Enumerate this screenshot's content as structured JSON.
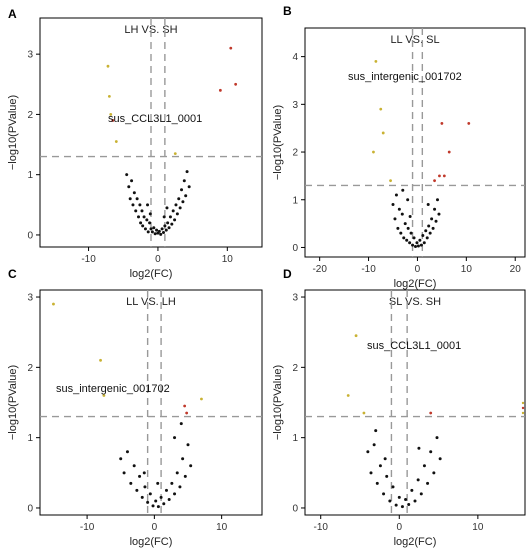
{
  "chart_data": [
    {
      "type": "scatter",
      "panel_label": "A",
      "title": "LH VS. SH",
      "xlabel": "log2(FC)",
      "ylabel": "−log10(PValue)",
      "xlim": [
        -17,
        15
      ],
      "ylim": [
        -0.2,
        3.6
      ],
      "xticks": [
        -10,
        0,
        10
      ],
      "yticks": [
        0,
        1,
        2,
        3
      ],
      "threshold_y": 1.3,
      "threshold_x": [
        -1,
        1
      ],
      "annotation": {
        "text": "sus_CCL3L1_0001"
      },
      "points": {
        "black": [
          [
            -4.5,
            1.0
          ],
          [
            -4.2,
            0.8
          ],
          [
            -4.0,
            0.6
          ],
          [
            -3.8,
            0.9
          ],
          [
            -3.6,
            0.5
          ],
          [
            -3.4,
            0.7
          ],
          [
            -3.2,
            0.4
          ],
          [
            -3.0,
            0.6
          ],
          [
            -2.8,
            0.3
          ],
          [
            -2.6,
            0.5
          ],
          [
            -2.5,
            0.2
          ],
          [
            -2.3,
            0.4
          ],
          [
            -2.2,
            0.15
          ],
          [
            -2.0,
            0.3
          ],
          [
            -1.8,
            0.1
          ],
          [
            -1.6,
            0.25
          ],
          [
            -1.4,
            0.05
          ],
          [
            -1.2,
            0.2
          ],
          [
            -1.0,
            0.1
          ],
          [
            -0.8,
            0.05
          ],
          [
            -0.6,
            0.12
          ],
          [
            -0.4,
            0.02
          ],
          [
            -0.2,
            0.08
          ],
          [
            0.0,
            0.03
          ],
          [
            0.2,
            0.06
          ],
          [
            0.4,
            0.01
          ],
          [
            0.6,
            0.1
          ],
          [
            0.8,
            0.04
          ],
          [
            1.0,
            0.15
          ],
          [
            1.2,
            0.08
          ],
          [
            1.4,
            0.2
          ],
          [
            1.6,
            0.12
          ],
          [
            1.8,
            0.3
          ],
          [
            2.0,
            0.18
          ],
          [
            2.2,
            0.4
          ],
          [
            2.4,
            0.25
          ],
          [
            2.6,
            0.5
          ],
          [
            2.8,
            0.35
          ],
          [
            3.0,
            0.6
          ],
          [
            3.2,
            0.45
          ],
          [
            3.4,
            0.75
          ],
          [
            3.6,
            0.55
          ],
          [
            3.8,
            0.9
          ],
          [
            4.0,
            0.65
          ],
          [
            4.2,
            1.05
          ],
          [
            4.5,
            0.8
          ],
          [
            -1.5,
            0.5
          ],
          [
            -1.1,
            0.35
          ],
          [
            1.3,
            0.45
          ],
          [
            0.9,
            0.3
          ]
        ],
        "yellow": [
          [
            -7.2,
            2.8
          ],
          [
            -7.0,
            2.3
          ],
          [
            -6.8,
            2.0
          ],
          [
            -6.0,
            1.55
          ],
          [
            2.5,
            1.35
          ]
        ],
        "red": [
          [
            9,
            2.4
          ],
          [
            10.5,
            3.1
          ],
          [
            11.2,
            2.5
          ],
          [
            -6.5,
            1.9
          ]
        ]
      }
    },
    {
      "type": "scatter",
      "panel_label": "B",
      "title": "LL VS. SL",
      "xlabel": "log2(FC)",
      "ylabel": "−log10(PValue)",
      "xlim": [
        -23,
        22
      ],
      "ylim": [
        -0.2,
        4.6
      ],
      "xticks": [
        -20,
        -10,
        0,
        10,
        20
      ],
      "yticks": [
        0,
        1,
        2,
        3,
        4
      ],
      "threshold_y": 1.3,
      "threshold_x": [
        -1,
        1
      ],
      "annotation": {
        "text": "sus_intergenic_001702"
      },
      "points": {
        "black": [
          [
            -5.0,
            0.9
          ],
          [
            -4.6,
            0.6
          ],
          [
            -4.3,
            1.1
          ],
          [
            -4.0,
            0.4
          ],
          [
            -3.7,
            0.8
          ],
          [
            -3.4,
            0.3
          ],
          [
            -3.1,
            0.7
          ],
          [
            -2.8,
            0.2
          ],
          [
            -2.5,
            0.5
          ],
          [
            -2.2,
            0.15
          ],
          [
            -1.9,
            0.4
          ],
          [
            -1.6,
            0.1
          ],
          [
            -1.3,
            0.3
          ],
          [
            -1.0,
            0.05
          ],
          [
            -0.7,
            0.2
          ],
          [
            -0.4,
            0.02
          ],
          [
            -0.1,
            0.1
          ],
          [
            0.2,
            0.03
          ],
          [
            0.5,
            0.15
          ],
          [
            0.8,
            0.05
          ],
          [
            1.1,
            0.25
          ],
          [
            1.4,
            0.1
          ],
          [
            1.7,
            0.35
          ],
          [
            2.0,
            0.2
          ],
          [
            2.3,
            0.45
          ],
          [
            2.6,
            0.3
          ],
          [
            2.9,
            0.6
          ],
          [
            3.2,
            0.4
          ],
          [
            3.5,
            0.8
          ],
          [
            3.8,
            0.55
          ],
          [
            4.1,
            1.0
          ],
          [
            4.4,
            0.7
          ],
          [
            -2.0,
            1.0
          ],
          [
            -3.0,
            1.2
          ],
          [
            2.2,
            0.9
          ],
          [
            -1.5,
            0.65
          ]
        ],
        "yellow": [
          [
            -8.5,
            3.9
          ],
          [
            -7.5,
            2.9
          ],
          [
            -7.0,
            2.4
          ],
          [
            -9.0,
            2.0
          ],
          [
            -5.5,
            1.4
          ]
        ],
        "red": [
          [
            5.0,
            2.6
          ],
          [
            6.5,
            2.0
          ],
          [
            10.5,
            2.6
          ],
          [
            3.5,
            1.4
          ],
          [
            4.5,
            1.5
          ],
          [
            5.5,
            1.5
          ]
        ]
      }
    },
    {
      "type": "scatter",
      "panel_label": "C",
      "title": "LL VS. LH",
      "xlabel": "log2(FC)",
      "ylabel": "−log10(PValue)",
      "xlim": [
        -17,
        16
      ],
      "ylim": [
        -0.1,
        3.1
      ],
      "xticks": [
        -10,
        0,
        10
      ],
      "yticks": [
        0,
        1,
        2,
        3
      ],
      "threshold_y": 1.3,
      "threshold_x": [
        -1,
        1
      ],
      "annotation": {
        "text": "sus_intergenic_001702"
      },
      "points": {
        "black": [
          [
            -5.0,
            0.7
          ],
          [
            -4.5,
            0.5
          ],
          [
            -4.0,
            0.8
          ],
          [
            -3.5,
            0.35
          ],
          [
            -3.0,
            0.6
          ],
          [
            -2.6,
            0.25
          ],
          [
            -2.2,
            0.45
          ],
          [
            -1.8,
            0.15
          ],
          [
            -1.4,
            0.3
          ],
          [
            -1.0,
            0.08
          ],
          [
            -0.6,
            0.2
          ],
          [
            -0.2,
            0.03
          ],
          [
            0.2,
            0.1
          ],
          [
            0.6,
            0.02
          ],
          [
            1.0,
            0.15
          ],
          [
            1.4,
            0.06
          ],
          [
            1.8,
            0.25
          ],
          [
            2.2,
            0.12
          ],
          [
            2.6,
            0.35
          ],
          [
            3.0,
            0.2
          ],
          [
            3.4,
            0.5
          ],
          [
            3.8,
            0.3
          ],
          [
            4.2,
            0.7
          ],
          [
            4.6,
            0.45
          ],
          [
            5.0,
            0.9
          ],
          [
            5.4,
            0.6
          ],
          [
            3.0,
            1.0
          ],
          [
            4.0,
            1.2
          ],
          [
            -1.5,
            0.5
          ],
          [
            0.5,
            0.35
          ]
        ],
        "yellow": [
          [
            -15.0,
            2.9
          ],
          [
            -8.0,
            2.1
          ],
          [
            -7.5,
            1.6
          ],
          [
            7.0,
            1.55
          ]
        ],
        "red": [
          [
            4.5,
            1.45
          ],
          [
            4.8,
            1.35
          ]
        ]
      }
    },
    {
      "type": "scatter",
      "panel_label": "D",
      "title": "SL VS. SH",
      "xlabel": "log2(FC)",
      "ylabel": "−log10(PValue)",
      "xlim": [
        -12,
        16
      ],
      "ylim": [
        -0.1,
        3.1
      ],
      "xticks": [
        -10,
        0,
        10
      ],
      "yticks": [
        0,
        1,
        2,
        3
      ],
      "threshold_y": 1.3,
      "threshold_x": [
        -1,
        1
      ],
      "annotation": {
        "text": "sus_CCL3L1_0001"
      },
      "points": {
        "black": [
          [
            -4.0,
            0.8
          ],
          [
            -3.6,
            0.5
          ],
          [
            -3.2,
            0.9
          ],
          [
            -2.8,
            0.35
          ],
          [
            -2.4,
            0.6
          ],
          [
            -2.0,
            0.2
          ],
          [
            -1.6,
            0.45
          ],
          [
            -1.2,
            0.1
          ],
          [
            -0.8,
            0.3
          ],
          [
            -0.4,
            0.04
          ],
          [
            0.0,
            0.15
          ],
          [
            0.4,
            0.02
          ],
          [
            0.8,
            0.12
          ],
          [
            1.2,
            0.05
          ],
          [
            1.6,
            0.25
          ],
          [
            2.0,
            0.1
          ],
          [
            2.4,
            0.4
          ],
          [
            2.8,
            0.2
          ],
          [
            3.2,
            0.6
          ],
          [
            3.6,
            0.35
          ],
          [
            4.0,
            0.8
          ],
          [
            4.4,
            0.5
          ],
          [
            4.8,
            1.0
          ],
          [
            5.2,
            0.7
          ],
          [
            -3.0,
            1.1
          ],
          [
            2.5,
            0.85
          ],
          [
            -1.8,
            0.7
          ]
        ],
        "yellow": [
          [
            -5.5,
            2.45
          ],
          [
            -6.5,
            1.6
          ],
          [
            -4.5,
            1.35
          ]
        ],
        "red": [
          [
            4.0,
            1.35
          ]
        ]
      }
    }
  ]
}
